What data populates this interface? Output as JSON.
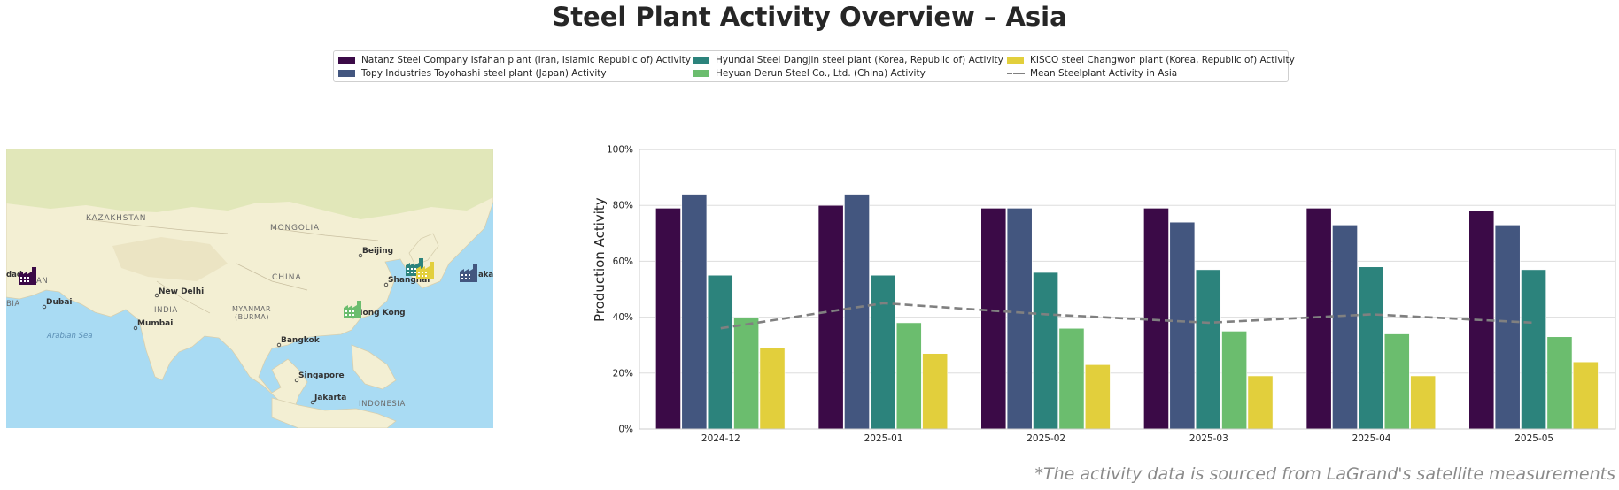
{
  "title": "Steel Plant Activity Overview – Asia",
  "source_note": "*The activity data is sourced from LaGrand's satellite measurements",
  "legend": [
    {
      "label": "Natanz Steel Company Isfahan plant (Iran, Islamic Republic of) Activity",
      "color": "#3b0a47",
      "kind": "bar"
    },
    {
      "label": "Topy Industries Toyohashi steel plant (Japan) Activity",
      "color": "#43567f",
      "kind": "bar"
    },
    {
      "label": "Hyundai Steel Dangjin steel plant (Korea, Republic of) Activity",
      "color": "#2c837c",
      "kind": "bar"
    },
    {
      "label": "Heyuan Derun Steel Co., Ltd. (China) Activity",
      "color": "#6bbd6e",
      "kind": "bar"
    },
    {
      "label": "KISCO steel Changwon plant (Korea, Republic of) Activity",
      "color": "#e2cf3c",
      "kind": "bar"
    },
    {
      "label": "Mean Steelplant Activity in Asia",
      "color": "#808080",
      "kind": "dashed-line"
    }
  ],
  "map": {
    "labels": [
      {
        "text": "KAZAKHSTAN",
        "kind": "country"
      },
      {
        "text": "MONGOLIA",
        "kind": "country"
      },
      {
        "text": "CHINA",
        "kind": "country"
      },
      {
        "text": "INDIA",
        "kind": "country"
      },
      {
        "text": "MYANMAR",
        "kind": "country"
      },
      {
        "text": "(BURMA)",
        "kind": "country"
      },
      {
        "text": "INDONESIA",
        "kind": "country"
      },
      {
        "text": "Beijing",
        "kind": "city"
      },
      {
        "text": "Shanghai",
        "kind": "city"
      },
      {
        "text": "Hong Kong",
        "kind": "city"
      },
      {
        "text": "New Delhi",
        "kind": "city"
      },
      {
        "text": "Mumbai",
        "kind": "city"
      },
      {
        "text": "Dubai",
        "kind": "city"
      },
      {
        "text": "Bangkok",
        "kind": "city"
      },
      {
        "text": "Singapore",
        "kind": "city"
      },
      {
        "text": "Jakarta",
        "kind": "city"
      },
      {
        "text": "Arabian Sea",
        "kind": "sea"
      },
      {
        "text": "AN",
        "kind": "country"
      },
      {
        "text": "dad",
        "kind": "city"
      },
      {
        "text": "BIA",
        "kind": "country"
      },
      {
        "text": "aka",
        "kind": "city"
      }
    ],
    "markers": [
      {
        "plant": "Natanz Steel Company Isfahan plant",
        "icon": "factory-icon",
        "color": "#3b0a47"
      },
      {
        "plant": "Hyundai Steel Dangjin steel plant",
        "icon": "factory-icon",
        "color": "#2c837c"
      },
      {
        "plant": "KISCO steel Changwon plant",
        "icon": "factory-icon",
        "color": "#e2cf3c"
      },
      {
        "plant": "Topy Industries Toyohashi steel plant",
        "icon": "factory-icon",
        "color": "#43567f"
      },
      {
        "plant": "Heyuan Derun Steel Co., Ltd.",
        "icon": "factory-icon",
        "color": "#6bbd6e"
      }
    ]
  },
  "chart_data": {
    "type": "bar",
    "title": "",
    "xlabel": "",
    "ylabel": "Production Activity",
    "ylim": [
      0,
      100
    ],
    "y_ticks": [
      "0%",
      "20%",
      "40%",
      "60%",
      "80%",
      "100%"
    ],
    "grid": "horizontal",
    "categories": [
      "2024-12",
      "2025-01",
      "2025-02",
      "2025-03",
      "2025-04",
      "2025-05"
    ],
    "series": [
      {
        "name": "Natanz Steel Company Isfahan plant (Iran, Islamic Republic of) Activity",
        "color": "#3b0a47",
        "values": [
          79,
          80,
          79,
          79,
          79,
          78
        ]
      },
      {
        "name": "Topy Industries Toyohashi steel plant (Japan) Activity",
        "color": "#43567f",
        "values": [
          84,
          84,
          79,
          74,
          73,
          73
        ]
      },
      {
        "name": "Hyundai Steel Dangjin steel plant (Korea, Republic of) Activity",
        "color": "#2c837c",
        "values": [
          55,
          55,
          56,
          57,
          58,
          57
        ]
      },
      {
        "name": "Heyuan Derun Steel Co., Ltd. (China) Activity",
        "color": "#6bbd6e",
        "values": [
          40,
          38,
          36,
          35,
          34,
          33
        ]
      },
      {
        "name": "KISCO steel Changwon plant (Korea, Republic of) Activity",
        "color": "#e2cf3c",
        "values": [
          29,
          27,
          23,
          19,
          19,
          24
        ]
      }
    ],
    "mean_line": {
      "name": "Mean Steelplant Activity in Asia",
      "color": "#808080",
      "style": "dashed",
      "values": [
        36,
        45,
        41,
        38,
        41,
        38
      ]
    }
  }
}
